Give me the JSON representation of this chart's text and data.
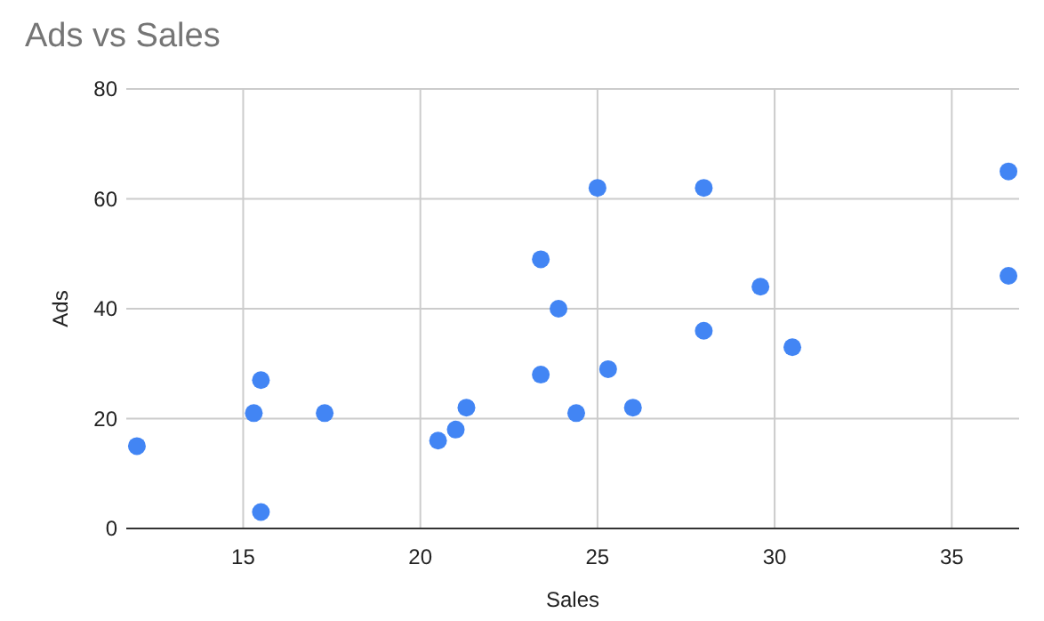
{
  "chart_data": {
    "type": "scatter",
    "title": "Ads vs Sales",
    "xlabel": "Sales",
    "ylabel": "Ads",
    "x": [
      12.0,
      15.3,
      15.5,
      15.5,
      17.3,
      20.5,
      21.0,
      21.3,
      23.4,
      23.4,
      23.9,
      24.4,
      25.0,
      28.0,
      36.6,
      36.6,
      29.6,
      28.0,
      30.5,
      25.3,
      26.0
    ],
    "series": [
      {
        "color": "#4285f4",
        "values": [
          15,
          21,
          27,
          3,
          21,
          16,
          18,
          22,
          49,
          28,
          40,
          21,
          62,
          62,
          65,
          46,
          44,
          36,
          33,
          29,
          22
        ]
      }
    ],
    "xlim": [
      11.7,
      36.9
    ],
    "xticks": [
      15,
      20,
      25,
      30,
      35
    ],
    "ylim": [
      0,
      80
    ],
    "yticks": [
      0,
      20,
      40,
      60,
      80
    ],
    "grid": true,
    "marker": "circle"
  }
}
